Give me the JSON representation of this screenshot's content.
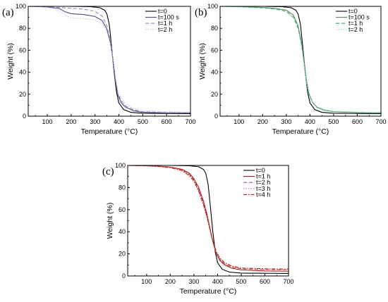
{
  "chart_data": [
    {
      "type": "line",
      "panel_label": "(a)",
      "xlabel": "Temperature (°C)",
      "ylabel": "Weight (%)",
      "xlim": [
        20,
        700
      ],
      "ylim": [
        0,
        100
      ],
      "xticks": [
        100,
        200,
        300,
        400,
        500,
        600,
        700
      ],
      "yticks": [
        0,
        20,
        40,
        60,
        80,
        100
      ],
      "legend_position": "top-right",
      "series": [
        {
          "name": "t=0",
          "color": "#000000",
          "dash": "solid",
          "points": [
            [
              20,
              100
            ],
            [
              200,
              100
            ],
            [
              280,
              99.7
            ],
            [
              320,
              98.8
            ],
            [
              340,
              96.5
            ],
            [
              350,
              93
            ],
            [
              360,
              83
            ],
            [
              370,
              62
            ],
            [
              380,
              40
            ],
            [
              390,
              22
            ],
            [
              400,
              12
            ],
            [
              420,
              6
            ],
            [
              450,
              3.5
            ],
            [
              500,
              2.6
            ],
            [
              600,
              2.4
            ],
            [
              700,
              2.3
            ]
          ]
        },
        {
          "name": "t=100 s",
          "color": "#4a4a85",
          "dash": "solid",
          "points": [
            [
              20,
              100
            ],
            [
              100,
              99.5
            ],
            [
              150,
              98
            ],
            [
              175,
              95
            ],
            [
              200,
              93.3
            ],
            [
              250,
              92.6
            ],
            [
              300,
              90.8
            ],
            [
              330,
              87
            ],
            [
              350,
              79
            ],
            [
              365,
              66
            ],
            [
              375,
              52
            ],
            [
              385,
              33
            ],
            [
              395,
              20
            ],
            [
              410,
              12
            ],
            [
              430,
              8
            ],
            [
              460,
              5
            ],
            [
              500,
              3.5
            ],
            [
              600,
              3
            ],
            [
              700,
              3
            ]
          ]
        },
        {
          "name": "t=1 h",
          "color": "#8a8ab5",
          "dash": "dash",
          "points": [
            [
              20,
              100
            ],
            [
              100,
              99.5
            ],
            [
              150,
              99
            ],
            [
              200,
              98.2
            ],
            [
              250,
              97.5
            ],
            [
              300,
              95.5
            ],
            [
              330,
              91
            ],
            [
              350,
              82
            ],
            [
              365,
              68
            ],
            [
              375,
              53
            ],
            [
              385,
              35
            ],
            [
              395,
              21
            ],
            [
              410,
              14
            ],
            [
              430,
              9
            ],
            [
              460,
              6
            ],
            [
              500,
              4
            ],
            [
              600,
              3.3
            ],
            [
              700,
              3
            ]
          ]
        },
        {
          "name": "t=2 h",
          "color": "#c2c2dc",
          "dash": "dot",
          "points": [
            [
              20,
              100
            ],
            [
              100,
              99
            ],
            [
              150,
              96
            ],
            [
              175,
              92
            ],
            [
              200,
              89.5
            ],
            [
              250,
              88.8
            ],
            [
              300,
              87.5
            ],
            [
              330,
              84
            ],
            [
              350,
              77
            ],
            [
              365,
              65
            ],
            [
              375,
              52
            ],
            [
              385,
              36
            ],
            [
              395,
              24
            ],
            [
              410,
              16
            ],
            [
              430,
              11
            ],
            [
              460,
              7
            ],
            [
              500,
              5
            ],
            [
              600,
              4
            ],
            [
              700,
              3.6
            ]
          ]
        }
      ]
    },
    {
      "type": "line",
      "panel_label": "(b)",
      "xlabel": "Temperature (°C)",
      "ylabel": "Weight (%)",
      "xlim": [
        20,
        700
      ],
      "ylim": [
        0,
        100
      ],
      "xticks": [
        100,
        200,
        300,
        400,
        500,
        600,
        700
      ],
      "yticks": [
        0,
        20,
        40,
        60,
        80,
        100
      ],
      "legend_position": "top-right",
      "series": [
        {
          "name": "t=0",
          "color": "#000000",
          "dash": "solid",
          "points": [
            [
              20,
              100
            ],
            [
              200,
              100
            ],
            [
              280,
              99.7
            ],
            [
              320,
              98.8
            ],
            [
              340,
              96.5
            ],
            [
              350,
              93
            ],
            [
              360,
              83
            ],
            [
              370,
              62
            ],
            [
              380,
              40
            ],
            [
              390,
              22
            ],
            [
              400,
              12
            ],
            [
              420,
              6
            ],
            [
              450,
              3.5
            ],
            [
              500,
              2.6
            ],
            [
              600,
              2.4
            ],
            [
              700,
              2.3
            ]
          ]
        },
        {
          "name": "t=100 s",
          "color": "#5a8a5a",
          "dash": "solid",
          "points": [
            [
              20,
              100
            ],
            [
              100,
              99.8
            ],
            [
              200,
              99
            ],
            [
              250,
              98.2
            ],
            [
              300,
              96.5
            ],
            [
              330,
              92
            ],
            [
              350,
              82
            ],
            [
              365,
              66
            ],
            [
              375,
              50
            ],
            [
              385,
              33
            ],
            [
              395,
              21
            ],
            [
              410,
              13
            ],
            [
              430,
              8
            ],
            [
              460,
              5.5
            ],
            [
              500,
              4
            ],
            [
              600,
              3.3
            ],
            [
              700,
              3
            ]
          ]
        },
        {
          "name": "t=1 h",
          "color": "#2ea86a",
          "dash": "dash",
          "points": [
            [
              20,
              100
            ],
            [
              100,
              99.6
            ],
            [
              200,
              98.6
            ],
            [
              250,
              97.7
            ],
            [
              300,
              95.5
            ],
            [
              330,
              90
            ],
            [
              350,
              80
            ],
            [
              365,
              64
            ],
            [
              375,
              48
            ],
            [
              385,
              31
            ],
            [
              395,
              20
            ],
            [
              410,
              12.5
            ],
            [
              430,
              8
            ],
            [
              460,
              5.5
            ],
            [
              500,
              4
            ],
            [
              600,
              3.3
            ],
            [
              700,
              3
            ]
          ]
        },
        {
          "name": "t=2 h",
          "color": "#9ad7b6",
          "dash": "dot",
          "points": [
            [
              20,
              100
            ],
            [
              100,
              99.5
            ],
            [
              200,
              98.3
            ],
            [
              250,
              97.3
            ],
            [
              300,
              95
            ],
            [
              330,
              89.5
            ],
            [
              350,
              79
            ],
            [
              365,
              63
            ],
            [
              375,
              47
            ],
            [
              385,
              31
            ],
            [
              395,
              20
            ],
            [
              410,
              13
            ],
            [
              430,
              8.5
            ],
            [
              460,
              6
            ],
            [
              500,
              4.5
            ],
            [
              600,
              3.7
            ],
            [
              700,
              3.4
            ]
          ]
        }
      ]
    },
    {
      "type": "line",
      "panel_label": "(c)",
      "xlabel": "Temperature (°C)",
      "ylabel": "Weight (%)",
      "xlim": [
        20,
        700
      ],
      "ylim": [
        0,
        100
      ],
      "xticks": [
        100,
        200,
        300,
        400,
        500,
        600,
        700
      ],
      "yticks": [
        0,
        20,
        40,
        60,
        80,
        100
      ],
      "legend_position": "top-right",
      "series": [
        {
          "name": "t=0",
          "color": "#000000",
          "dash": "solid",
          "points": [
            [
              20,
              100
            ],
            [
              200,
              100
            ],
            [
              280,
              99.7
            ],
            [
              320,
              98.8
            ],
            [
              340,
              96.5
            ],
            [
              350,
              93
            ],
            [
              360,
              83
            ],
            [
              370,
              62
            ],
            [
              380,
              40
            ],
            [
              390,
              22
            ],
            [
              400,
              12
            ],
            [
              420,
              6
            ],
            [
              450,
              3.5
            ],
            [
              500,
              2.6
            ],
            [
              600,
              2.4
            ],
            [
              700,
              2.3
            ]
          ]
        },
        {
          "name": "t=1 h",
          "color": "#9b1c1c",
          "dash": "solid",
          "points": [
            [
              20,
              100
            ],
            [
              100,
              99.7
            ],
            [
              150,
              99.3
            ],
            [
              200,
              98.5
            ],
            [
              250,
              96.5
            ],
            [
              280,
              93
            ],
            [
              300,
              88
            ],
            [
              320,
              80
            ],
            [
              340,
              68
            ],
            [
              355,
              56
            ],
            [
              365,
              46
            ],
            [
              375,
              36
            ],
            [
              385,
              27
            ],
            [
              395,
              20
            ],
            [
              410,
              14
            ],
            [
              430,
              10
            ],
            [
              460,
              7
            ],
            [
              500,
              5.5
            ],
            [
              600,
              4.5
            ],
            [
              700,
              4.3
            ]
          ]
        },
        {
          "name": "t=2 h",
          "color": "#c94a4a",
          "dash": "dash",
          "points": [
            [
              20,
              100
            ],
            [
              100,
              99.7
            ],
            [
              150,
              99.2
            ],
            [
              200,
              98.3
            ],
            [
              250,
              96
            ],
            [
              280,
              92
            ],
            [
              300,
              87
            ],
            [
              320,
              78
            ],
            [
              340,
              66
            ],
            [
              355,
              54
            ],
            [
              365,
              45
            ],
            [
              375,
              35
            ],
            [
              385,
              27
            ],
            [
              395,
              21
            ],
            [
              410,
              15
            ],
            [
              430,
              11
            ],
            [
              460,
              8
            ],
            [
              500,
              6.5
            ],
            [
              600,
              5.8
            ],
            [
              700,
              5.5
            ]
          ]
        },
        {
          "name": "t=3 h",
          "color": "#e07a7a",
          "dash": "dot",
          "points": [
            [
              20,
              100
            ],
            [
              100,
              99.6
            ],
            [
              150,
              99
            ],
            [
              200,
              97.8
            ],
            [
              250,
              95
            ],
            [
              280,
              90.5
            ],
            [
              300,
              85
            ],
            [
              320,
              76
            ],
            [
              340,
              63
            ],
            [
              355,
              52
            ],
            [
              365,
              43
            ],
            [
              375,
              34
            ],
            [
              385,
              27
            ],
            [
              395,
              21
            ],
            [
              410,
              15.5
            ],
            [
              430,
              11.5
            ],
            [
              460,
              8.5
            ],
            [
              500,
              7
            ],
            [
              600,
              6.3
            ],
            [
              700,
              6
            ]
          ]
        },
        {
          "name": "t=4 h",
          "color": "#b22222",
          "dash": "dashdot",
          "points": [
            [
              20,
              100
            ],
            [
              100,
              99.6
            ],
            [
              150,
              99.1
            ],
            [
              200,
              98
            ],
            [
              250,
              95.5
            ],
            [
              280,
              91
            ],
            [
              300,
              86
            ],
            [
              320,
              77
            ],
            [
              340,
              65
            ],
            [
              355,
              54
            ],
            [
              365,
              45
            ],
            [
              375,
              36
            ],
            [
              385,
              28
            ],
            [
              395,
              22
            ],
            [
              410,
              16
            ],
            [
              430,
              12
            ],
            [
              460,
              9
            ],
            [
              500,
              7.2
            ],
            [
              600,
              6.5
            ],
            [
              700,
              6.2
            ]
          ]
        }
      ]
    }
  ]
}
